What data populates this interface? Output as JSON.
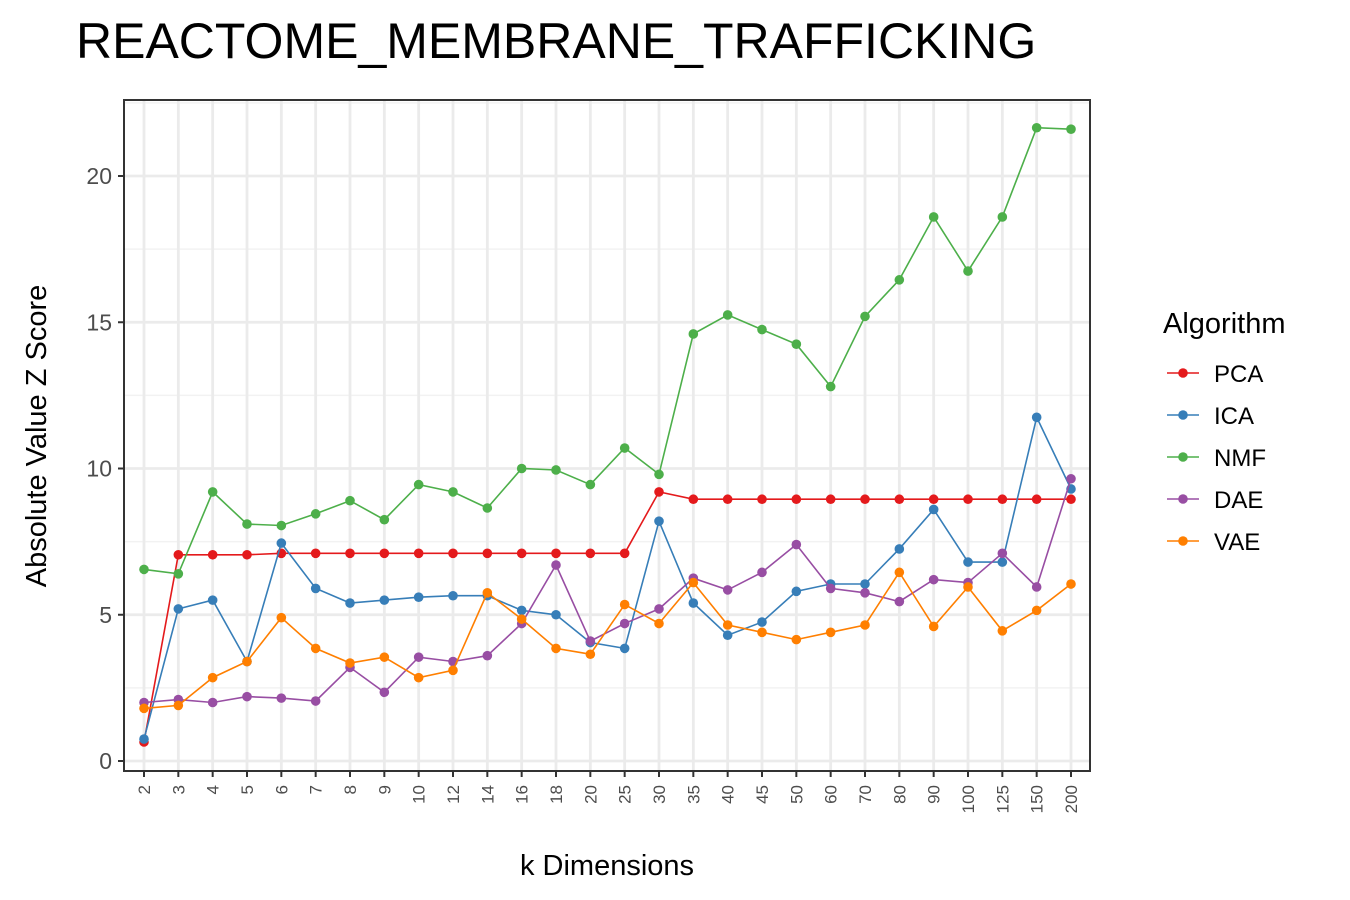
{
  "chart_data": {
    "type": "line",
    "title": "REACTOME_MEMBRANE_TRAFFICKING",
    "xlabel": "k Dimensions",
    "ylabel": "Absolute Value Z Score",
    "categories": [
      "2",
      "3",
      "4",
      "5",
      "6",
      "7",
      "8",
      "9",
      "10",
      "12",
      "14",
      "16",
      "18",
      "20",
      "25",
      "30",
      "35",
      "40",
      "45",
      "50",
      "60",
      "70",
      "80",
      "90",
      "100",
      "125",
      "150",
      "200"
    ],
    "ylim": [
      0,
      22.5
    ],
    "yticks": [
      0,
      5,
      10,
      15,
      20
    ],
    "grid": true,
    "legend": {
      "title": "Algorithm",
      "position": "right"
    },
    "series": [
      {
        "name": "PCA",
        "color": "#e41a1c",
        "values": [
          0.65,
          7.05,
          7.05,
          7.05,
          7.1,
          7.1,
          7.1,
          7.1,
          7.1,
          7.1,
          7.1,
          7.1,
          7.1,
          7.1,
          7.1,
          9.2,
          8.95,
          8.95,
          8.95,
          8.95,
          8.95,
          8.95,
          8.95,
          8.95,
          8.95,
          8.95,
          8.95,
          8.95
        ]
      },
      {
        "name": "ICA",
        "color": "#377eb8",
        "values": [
          0.75,
          5.2,
          5.5,
          3.4,
          7.45,
          5.9,
          5.4,
          5.5,
          5.6,
          5.65,
          5.65,
          5.15,
          5.0,
          4.05,
          3.85,
          8.2,
          5.4,
          4.3,
          4.75,
          5.8,
          6.05,
          6.05,
          7.25,
          8.6,
          6.8,
          6.8,
          11.75,
          9.3
        ]
      },
      {
        "name": "NMF",
        "color": "#4daf4a",
        "values": [
          6.55,
          6.4,
          9.2,
          8.1,
          8.05,
          8.45,
          8.9,
          8.25,
          9.45,
          9.2,
          8.65,
          10.0,
          9.95,
          9.45,
          10.7,
          9.8,
          14.6,
          15.25,
          14.75,
          14.25,
          12.8,
          15.2,
          16.45,
          18.6,
          16.75,
          18.6,
          21.65,
          21.6
        ]
      },
      {
        "name": "DAE",
        "color": "#984ea3",
        "values": [
          2.0,
          2.1,
          2.0,
          2.2,
          2.15,
          2.05,
          3.2,
          2.35,
          3.55,
          3.4,
          3.6,
          4.7,
          6.7,
          4.1,
          4.7,
          5.2,
          6.25,
          5.85,
          6.45,
          7.4,
          5.9,
          5.75,
          5.45,
          6.2,
          6.1,
          7.1,
          5.95,
          9.65
        ]
      },
      {
        "name": "VAE",
        "color": "#ff7f00",
        "values": [
          1.8,
          1.9,
          2.85,
          3.4,
          4.9,
          3.85,
          3.35,
          3.55,
          2.85,
          3.1,
          5.75,
          4.85,
          3.85,
          3.65,
          5.35,
          4.7,
          6.1,
          4.65,
          4.4,
          4.15,
          4.4,
          4.65,
          6.45,
          4.6,
          5.95,
          4.45,
          5.15,
          6.05
        ]
      }
    ]
  }
}
